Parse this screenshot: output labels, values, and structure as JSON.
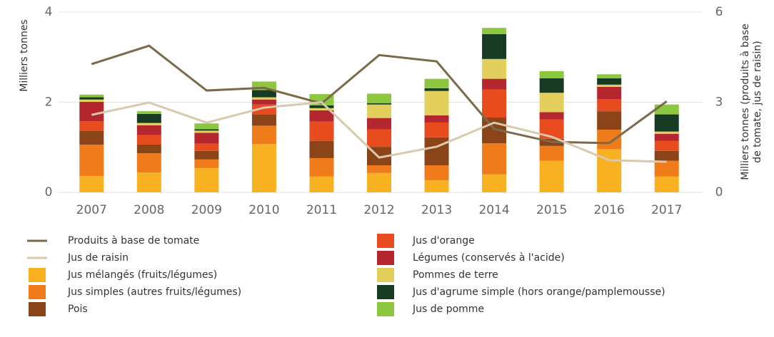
{
  "chart_data": {
    "type": "bar",
    "stacked": true,
    "ylabel": "Milliers tonnes",
    "y2label": [
      "Milliers tonnes (produits à base",
      "de tomate, jus de raisin)"
    ],
    "categories": [
      "2007",
      "2008",
      "2009",
      "2010",
      "2011",
      "2012",
      "2013",
      "2014",
      "2015",
      "2016",
      "2017"
    ],
    "ylim": [
      0,
      4
    ],
    "yticks": [
      0,
      2,
      4
    ],
    "y2lim": [
      0,
      6
    ],
    "y2ticks": [
      0,
      3,
      6
    ],
    "grid": true,
    "series": [
      {
        "name": "Produits à base de tomate",
        "type": "line",
        "axis": "y2",
        "color": "#7a6a4a",
        "values": [
          4.27,
          4.88,
          3.39,
          3.48,
          2.96,
          4.57,
          4.36,
          2.11,
          1.68,
          1.64,
          3.03
        ]
      },
      {
        "name": "Jus de raisin",
        "type": "line",
        "axis": "y2",
        "color": "#d9c9ae",
        "values": [
          2.58,
          2.99,
          2.32,
          2.82,
          3.0,
          1.16,
          1.52,
          2.32,
          1.85,
          1.07,
          1.02
        ]
      },
      {
        "name": "Jus mélangés (fruits/légumes)",
        "type": "bar",
        "color": "#f8b221",
        "values": [
          0.36,
          0.44,
          0.54,
          1.07,
          0.35,
          0.43,
          0.27,
          0.4,
          0.7,
          0.96,
          0.35
        ]
      },
      {
        "name": "Jus simples (autres fruits/légumes)",
        "type": "bar",
        "color": "#f07b1b",
        "values": [
          0.7,
          0.43,
          0.19,
          0.41,
          0.41,
          0.17,
          0.33,
          0.69,
          0.33,
          0.43,
          0.35
        ]
      },
      {
        "name": "Pois",
        "type": "bar",
        "color": "#8b4417",
        "values": [
          0.3,
          0.19,
          0.19,
          0.25,
          0.38,
          0.41,
          0.62,
          0.57,
          0.16,
          0.41,
          0.22
        ]
      },
      {
        "name": "Jus d'orange",
        "type": "bar",
        "color": "#e84b1e",
        "values": [
          0.22,
          0.21,
          0.16,
          0.22,
          0.43,
          0.39,
          0.33,
          0.62,
          0.43,
          0.27,
          0.22
        ]
      },
      {
        "name": "Légumes (conservés à l'acide)",
        "type": "bar",
        "color": "#b5272f",
        "values": [
          0.43,
          0.22,
          0.24,
          0.11,
          0.25,
          0.25,
          0.16,
          0.24,
          0.16,
          0.27,
          0.16
        ]
      },
      {
        "name": "Pommes de terre",
        "type": "bar",
        "color": "#e2cf5c",
        "values": [
          0.05,
          0.05,
          0.05,
          0.05,
          0.05,
          0.3,
          0.54,
          0.44,
          0.43,
          0.05,
          0.05
        ]
      },
      {
        "name": "Jus d'agrume simple (hors orange/pamplemousse)",
        "type": "bar",
        "color": "#173a22",
        "values": [
          0.05,
          0.2,
          0.03,
          0.16,
          0.06,
          0.03,
          0.06,
          0.55,
          0.32,
          0.14,
          0.38
        ]
      },
      {
        "name": "Jus de pomme",
        "type": "bar",
        "color": "#8dc63f",
        "values": [
          0.06,
          0.06,
          0.13,
          0.19,
          0.25,
          0.21,
          0.21,
          0.14,
          0.16,
          0.09,
          0.22
        ]
      }
    ]
  }
}
